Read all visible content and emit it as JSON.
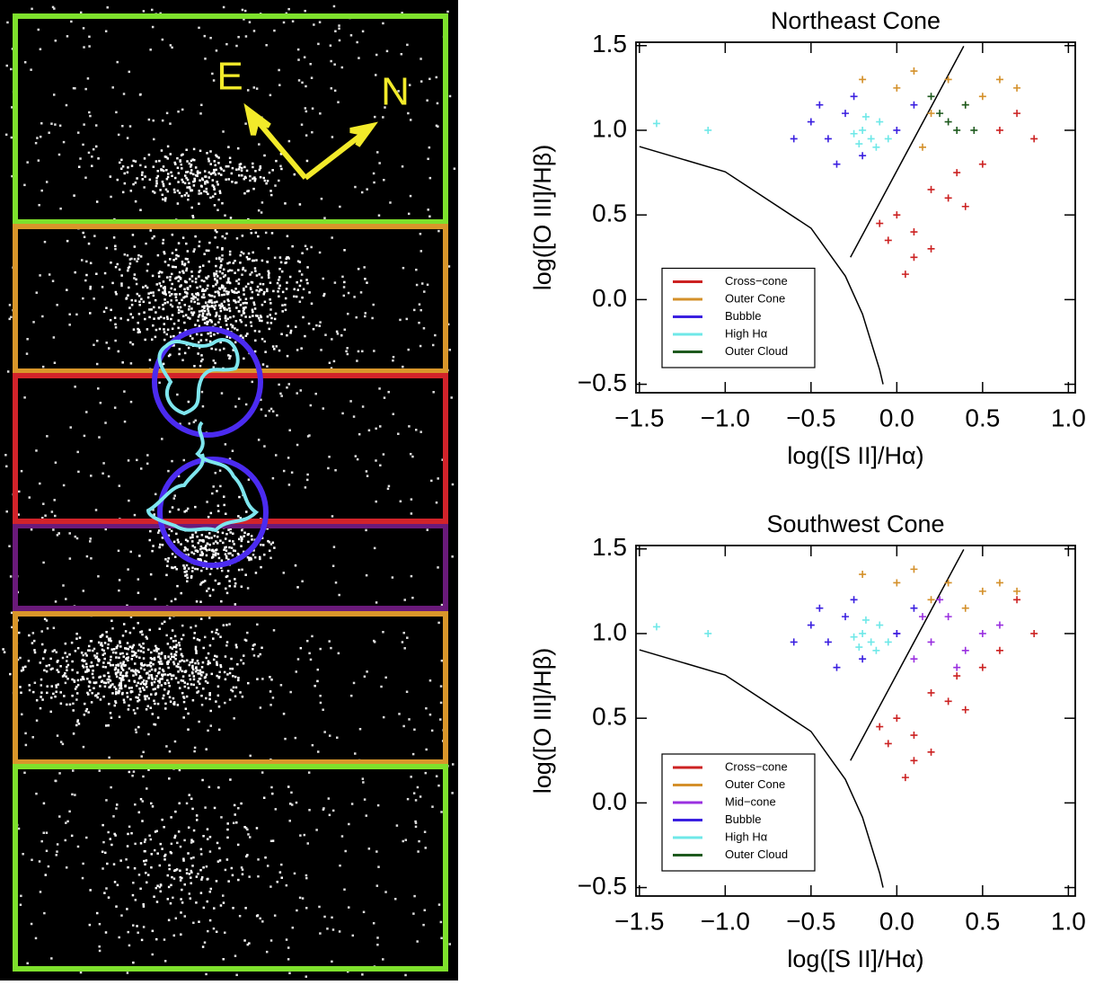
{
  "image_panel": {
    "compass": {
      "east": "E",
      "north": "N"
    }
  },
  "chart_data": [
    {
      "type": "scatter",
      "title": "Northeast Cone",
      "x_label": "log([S II]/Hα)",
      "y_label": "log([O III]/Hβ)",
      "xlim": [
        -1.52,
        1.04
      ],
      "ylim": [
        -0.55,
        1.52
      ],
      "xticks": [
        {
          "value": -1.5,
          "label": "−1.5"
        },
        {
          "value": -1.0,
          "label": "−1.0"
        },
        {
          "value": -0.5,
          "label": "−0.5"
        },
        {
          "value": 0,
          "label": "0.0"
        },
        0.5,
        {
          "value": 1.0,
          "label": "1.0"
        }
      ],
      "yticks": [
        {
          "value": -0.5,
          "label": "−0.5"
        },
        {
          "value": 0,
          "label": "0.0"
        },
        0.5,
        {
          "value": 1.0,
          "label": "1.0"
        },
        1.5
      ],
      "legend": "lower left",
      "curves": [
        {
          "x": [
            -1.5,
            -1.0,
            -0.5,
            -0.3,
            -0.2,
            -0.1,
            -0.08
          ],
          "y": [
            0.904,
            0.755,
            0.422,
            0.139,
            -0.085,
            -0.414,
            -0.5
          ]
        },
        {
          "x": [
            -0.27,
            0.39
          ],
          "y": [
            0.25,
            1.497
          ]
        }
      ],
      "series": [
        {
          "name": "Cross−cone",
          "color": "#cc2222",
          "x": [
            0.0,
            0.1,
            0.2,
            -0.1,
            0.3,
            0.4,
            0.5,
            0.6,
            0.7,
            0.1,
            0.05,
            0.2,
            0.8,
            -0.05,
            0.35
          ],
          "values": [
            0.5,
            0.4,
            0.3,
            0.45,
            0.6,
            0.55,
            0.8,
            1.0,
            1.1,
            0.25,
            0.15,
            0.65,
            0.95,
            0.35,
            0.75
          ]
        },
        {
          "name": "Outer Cone",
          "color": "#d4902a",
          "x": [
            -0.2,
            0.1,
            0.3,
            0.5,
            0.6,
            0.2,
            0.4,
            0.0,
            0.7,
            0.15
          ],
          "values": [
            1.3,
            1.35,
            1.3,
            1.2,
            1.3,
            1.1,
            1.15,
            1.25,
            1.25,
            0.9
          ]
        },
        {
          "name": "Bubble",
          "color": "#3b20e0",
          "x": [
            -0.5,
            -0.4,
            -0.3,
            -0.2,
            -0.6,
            -0.35,
            0.0,
            0.1,
            -0.25,
            -0.45
          ],
          "values": [
            1.05,
            0.95,
            1.1,
            0.85,
            0.95,
            0.8,
            1.0,
            1.15,
            1.2,
            1.15
          ]
        },
        {
          "name": "High Hα",
          "color": "#6fe8e8",
          "x": [
            -1.4,
            -1.1,
            -0.2,
            -0.15,
            -0.1,
            -0.25,
            -0.12,
            -0.18,
            -0.05,
            -0.22
          ],
          "values": [
            1.04,
            1.0,
            1.0,
            0.95,
            1.05,
            0.98,
            0.9,
            1.08,
            0.95,
            0.92
          ]
        },
        {
          "name": "Outer Cloud",
          "color": "#1e5a1e",
          "x": [
            0.25,
            0.3,
            0.35,
            0.4,
            0.45,
            0.2
          ],
          "values": [
            1.1,
            1.05,
            1.0,
            1.15,
            1.0,
            1.2
          ]
        }
      ]
    },
    {
      "type": "scatter",
      "title": "Southwest Cone",
      "x_label": "log([S II]/Hα)",
      "y_label": "log([O III]/Hβ)",
      "xlim": [
        -1.52,
        1.04
      ],
      "ylim": [
        -0.55,
        1.52
      ],
      "xticks": [
        {
          "value": -1.5,
          "label": "−1.5"
        },
        {
          "value": -1.0,
          "label": "−1.0"
        },
        {
          "value": -0.5,
          "label": "−0.5"
        },
        {
          "value": 0,
          "label": "0.0"
        },
        0.5,
        {
          "value": 1.0,
          "label": "1.0"
        }
      ],
      "yticks": [
        {
          "value": -0.5,
          "label": "−0.5"
        },
        {
          "value": 0,
          "label": "0.0"
        },
        0.5,
        {
          "value": 1.0,
          "label": "1.0"
        },
        1.5
      ],
      "legend": "lower left",
      "curves": [
        {
          "x": [
            -1.5,
            -1.0,
            -0.5,
            -0.3,
            -0.2,
            -0.1,
            -0.08
          ],
          "y": [
            0.904,
            0.755,
            0.422,
            0.139,
            -0.085,
            -0.414,
            -0.5
          ]
        },
        {
          "x": [
            -0.27,
            0.39
          ],
          "y": [
            0.25,
            1.497
          ]
        }
      ],
      "series": [
        {
          "name": "Cross−cone",
          "color": "#cc2222",
          "x": [
            0.0,
            0.1,
            0.2,
            -0.1,
            0.3,
            0.4,
            0.5,
            0.6,
            0.7,
            0.1,
            0.05,
            0.2,
            0.8,
            -0.05,
            0.35
          ],
          "values": [
            0.5,
            0.4,
            0.3,
            0.45,
            0.6,
            0.55,
            0.8,
            0.9,
            1.2,
            0.25,
            0.15,
            0.65,
            1.0,
            0.35,
            0.75
          ]
        },
        {
          "name": "Outer Cone",
          "color": "#d4902a",
          "x": [
            -0.2,
            0.1,
            0.3,
            0.5,
            0.6,
            0.2,
            0.4,
            0.0,
            0.7
          ],
          "values": [
            1.35,
            1.38,
            1.3,
            1.25,
            1.3,
            1.2,
            1.15,
            1.3,
            1.25
          ]
        },
        {
          "name": "Mid−cone",
          "color": "#9a30e0",
          "x": [
            0.0,
            0.2,
            0.3,
            0.4,
            0.5,
            0.1,
            0.6,
            0.25,
            0.35,
            0.15
          ],
          "values": [
            1.0,
            0.95,
            1.1,
            0.9,
            1.0,
            0.85,
            1.05,
            1.2,
            0.8,
            1.1
          ]
        },
        {
          "name": "Bubble",
          "color": "#3b20e0",
          "x": [
            -0.5,
            -0.4,
            -0.3,
            -0.2,
            -0.6,
            -0.35,
            0.0,
            0.1,
            -0.25,
            -0.45
          ],
          "values": [
            1.05,
            0.95,
            1.1,
            0.85,
            0.95,
            0.8,
            1.0,
            1.15,
            1.2,
            1.15
          ]
        },
        {
          "name": "High Hα",
          "color": "#6fe8e8",
          "x": [
            -1.4,
            -1.1,
            -0.2,
            -0.15,
            -0.1,
            -0.25,
            -0.12,
            -0.18,
            -0.05,
            -0.22
          ],
          "values": [
            1.04,
            1.0,
            1.0,
            0.95,
            1.05,
            0.98,
            0.9,
            1.08,
            0.95,
            0.92
          ]
        },
        {
          "name": "Outer Cloud",
          "color": "#1e5a1e",
          "x": [],
          "values": []
        }
      ]
    }
  ]
}
